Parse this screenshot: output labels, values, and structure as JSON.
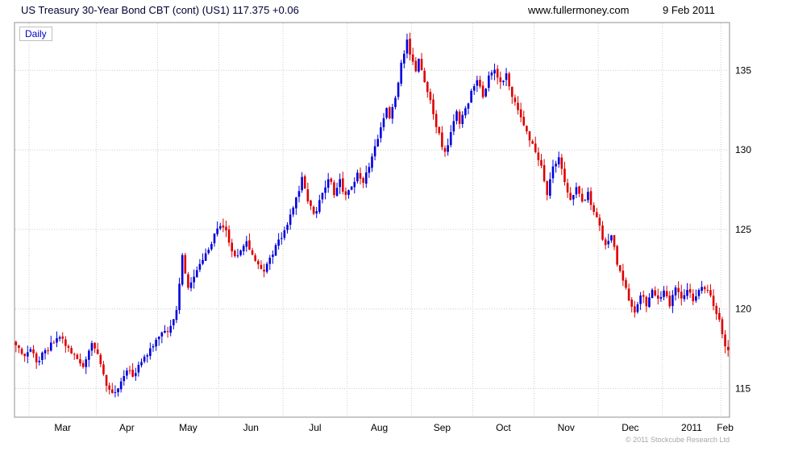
{
  "header": {
    "title": "US Treasury 30-Year Bond CBT (cont) (US1) 117.375 +0.06",
    "website": "www.fullermoney.com",
    "date": "9 Feb 2011"
  },
  "chart": {
    "frequency_label": "Daily",
    "copyright": "© 2011 Stockcube Research Ltd"
  },
  "chart_data": {
    "type": "candlestick",
    "title": "US Treasury 30-Year Bond CBT (cont) (US1)",
    "frequency": "Daily",
    "last_price": 117.375,
    "change": "+0.06",
    "y_axis": {
      "side": "right",
      "ticks": [
        115,
        120,
        125,
        130,
        135
      ],
      "range": [
        113.2,
        138.0
      ]
    },
    "total_days": 245,
    "months": [
      {
        "label": "Mar",
        "start": 5
      },
      {
        "label": "Apr",
        "start": 28
      },
      {
        "label": "May",
        "start": 49
      },
      {
        "label": "Jun",
        "start": 70
      },
      {
        "label": "Jul",
        "start": 92
      },
      {
        "label": "Aug",
        "start": 114
      },
      {
        "label": "Sep",
        "start": 136
      },
      {
        "label": "Oct",
        "start": 157
      },
      {
        "label": "Nov",
        "start": 178
      },
      {
        "label": "Dec",
        "start": 200
      },
      {
        "label": "2011",
        "start": 222
      },
      {
        "label": "Feb",
        "start": 242
      }
    ],
    "close_anchors": [
      [
        0,
        117.6
      ],
      [
        3,
        117.1
      ],
      [
        5,
        117.5
      ],
      [
        7,
        116.6
      ],
      [
        10,
        117.3
      ],
      [
        13,
        117.9
      ],
      [
        15,
        118.3
      ],
      [
        18,
        117.6
      ],
      [
        20,
        117.0
      ],
      [
        23,
        116.4
      ],
      [
        25,
        117.3
      ],
      [
        26,
        118.0
      ],
      [
        28,
        117.2
      ],
      [
        30,
        115.9
      ],
      [
        32,
        114.8
      ],
      [
        34,
        114.6
      ],
      [
        36,
        115.3
      ],
      [
        38,
        116.2
      ],
      [
        40,
        115.8
      ],
      [
        43,
        116.6
      ],
      [
        45,
        117.1
      ],
      [
        47,
        117.6
      ],
      [
        49,
        118.2
      ],
      [
        52,
        118.7
      ],
      [
        55,
        119.8
      ],
      [
        57,
        123.2
      ],
      [
        59,
        121.5
      ],
      [
        61,
        122.0
      ],
      [
        63,
        122.8
      ],
      [
        65,
        123.4
      ],
      [
        67,
        124.2
      ],
      [
        70,
        125.3
      ],
      [
        72,
        124.9
      ],
      [
        74,
        123.8
      ],
      [
        76,
        123.2
      ],
      [
        79,
        124.3
      ],
      [
        82,
        122.9
      ],
      [
        85,
        122.3
      ],
      [
        88,
        123.5
      ],
      [
        91,
        124.6
      ],
      [
        94,
        125.9
      ],
      [
        96,
        126.9
      ],
      [
        98,
        128.2
      ],
      [
        100,
        126.9
      ],
      [
        102,
        125.9
      ],
      [
        105,
        127.2
      ],
      [
        107,
        128.3
      ],
      [
        109,
        127.3
      ],
      [
        111,
        128.0
      ],
      [
        113,
        127.0
      ],
      [
        115,
        127.6
      ],
      [
        117,
        128.6
      ],
      [
        119,
        127.9
      ],
      [
        121,
        129.0
      ],
      [
        123,
        130.2
      ],
      [
        125,
        131.5
      ],
      [
        127,
        132.8
      ],
      [
        128,
        132.0
      ],
      [
        130,
        133.2
      ],
      [
        132,
        135.3
      ],
      [
        134,
        136.9
      ],
      [
        135,
        136.1
      ],
      [
        137,
        135.0
      ],
      [
        138,
        135.6
      ],
      [
        140,
        134.4
      ],
      [
        142,
        133.0
      ],
      [
        144,
        131.6
      ],
      [
        146,
        130.2
      ],
      [
        147,
        129.9
      ],
      [
        149,
        131.0
      ],
      [
        151,
        132.3
      ],
      [
        152,
        131.5
      ],
      [
        154,
        132.6
      ],
      [
        156,
        133.6
      ],
      [
        158,
        134.3
      ],
      [
        160,
        133.3
      ],
      [
        162,
        134.5
      ],
      [
        164,
        135.1
      ],
      [
        166,
        134.3
      ],
      [
        168,
        134.7
      ],
      [
        170,
        133.5
      ],
      [
        172,
        132.5
      ],
      [
        174,
        131.5
      ],
      [
        176,
        130.7
      ],
      [
        178,
        130.0
      ],
      [
        180,
        128.9
      ],
      [
        182,
        127.3
      ],
      [
        184,
        128.9
      ],
      [
        186,
        129.5
      ],
      [
        188,
        128.1
      ],
      [
        190,
        126.9
      ],
      [
        192,
        127.7
      ],
      [
        194,
        126.7
      ],
      [
        196,
        127.3
      ],
      [
        198,
        126.1
      ],
      [
        200,
        125.1
      ],
      [
        202,
        123.9
      ],
      [
        204,
        124.7
      ],
      [
        206,
        122.9
      ],
      [
        208,
        121.9
      ],
      [
        210,
        120.7
      ],
      [
        212,
        119.6
      ],
      [
        214,
        121.0
      ],
      [
        216,
        120.3
      ],
      [
        218,
        121.2
      ],
      [
        220,
        120.5
      ],
      [
        222,
        121.0
      ],
      [
        224,
        120.3
      ],
      [
        226,
        121.2
      ],
      [
        228,
        120.6
      ],
      [
        230,
        121.3
      ],
      [
        232,
        120.5
      ],
      [
        234,
        121.1
      ],
      [
        236,
        121.4
      ],
      [
        238,
        120.7
      ],
      [
        240,
        119.7
      ],
      [
        242,
        118.6
      ],
      [
        243,
        117.8
      ],
      [
        244,
        117.4
      ]
    ],
    "colors": {
      "up": "#0000dd",
      "down": "#dd0000",
      "grid": "#cccccc",
      "border": "#909090",
      "axis_text": "#000000"
    }
  }
}
